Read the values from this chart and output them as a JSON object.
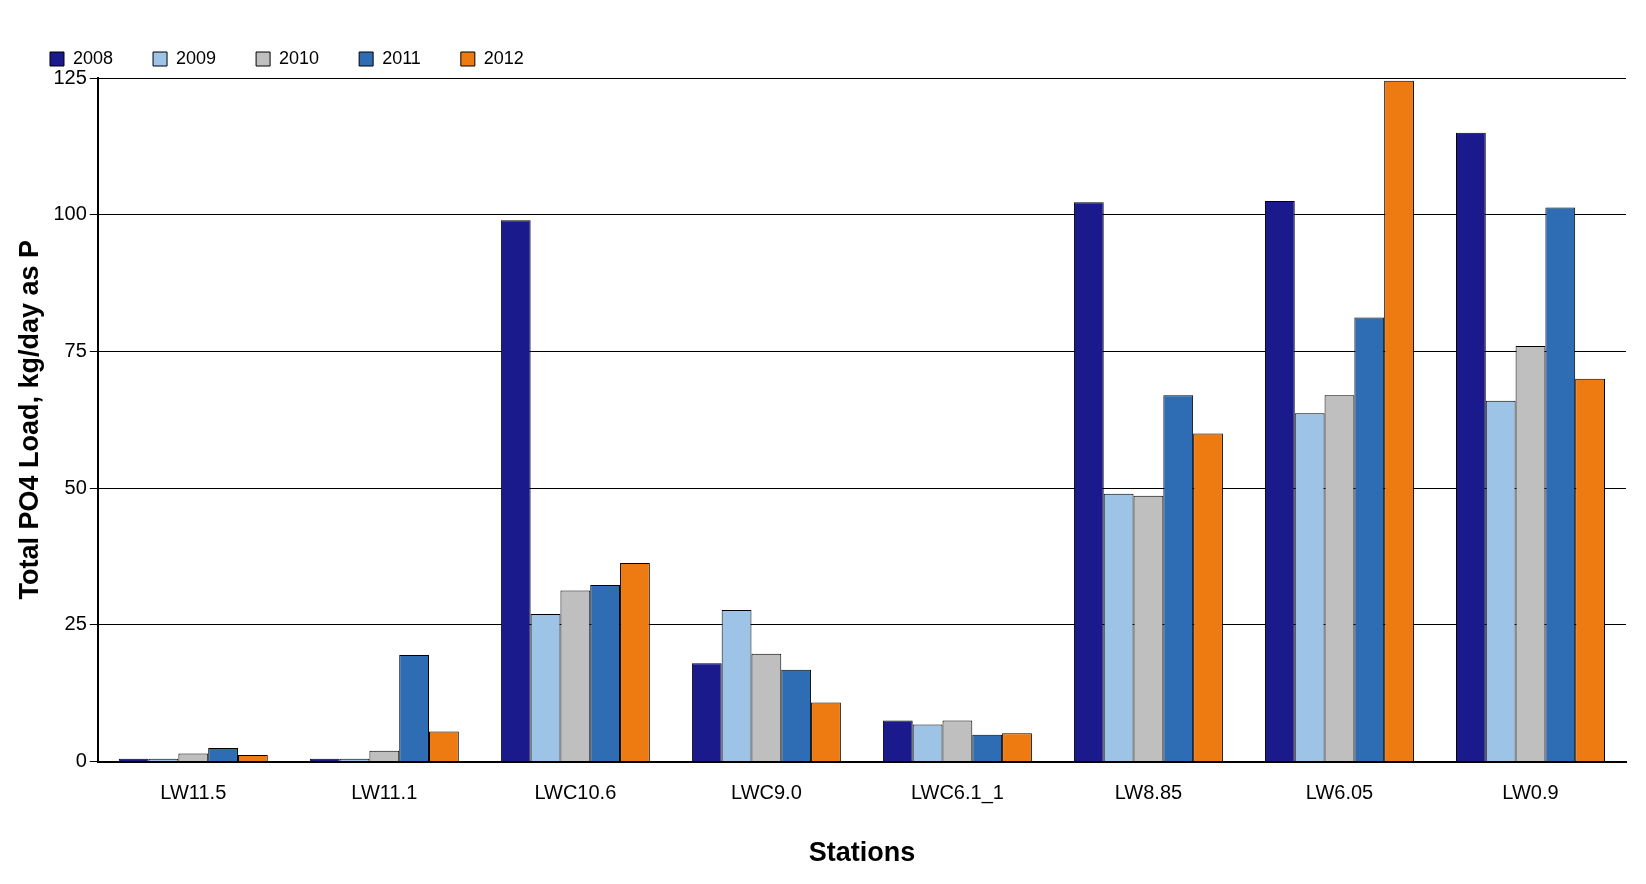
{
  "chart_data": {
    "type": "bar",
    "xlabel": "Stations",
    "ylabel": "Total PO4 Load, kg/day as P",
    "categories": [
      "LW11.5",
      "LW11.1",
      "LWC10.6",
      "LWC9.0",
      "LWC6.1_1",
      "LW8.85",
      "LW6.05",
      "LW0.9"
    ],
    "series": [
      {
        "name": "2008",
        "color": "#1a1a8c",
        "values": [
          0.5,
          0.5,
          99,
          18,
          7.5,
          102.3,
          102.5,
          115
        ]
      },
      {
        "name": "2009",
        "color": "#9dc3e6",
        "values": [
          0.5,
          0.5,
          27,
          27.7,
          6.8,
          49,
          63.7,
          66
        ]
      },
      {
        "name": "2010",
        "color": "#bfbfbf",
        "values": [
          1.5,
          2,
          31.3,
          19.7,
          7.5,
          48.6,
          67,
          76
        ]
      },
      {
        "name": "2011",
        "color": "#2e6db4",
        "values": [
          2.5,
          19.5,
          32.3,
          16.8,
          4.9,
          67,
          81.2,
          101.3
        ]
      },
      {
        "name": "2012",
        "color": "#ee7a12",
        "values": [
          1.2,
          5.5,
          36.3,
          10.8,
          5.2,
          60,
          124.5,
          70
        ]
      }
    ],
    "ylim": [
      0,
      125
    ],
    "yticks": [
      0,
      25,
      50,
      75,
      100,
      125
    ],
    "grid": "y",
    "legend": "top left"
  }
}
